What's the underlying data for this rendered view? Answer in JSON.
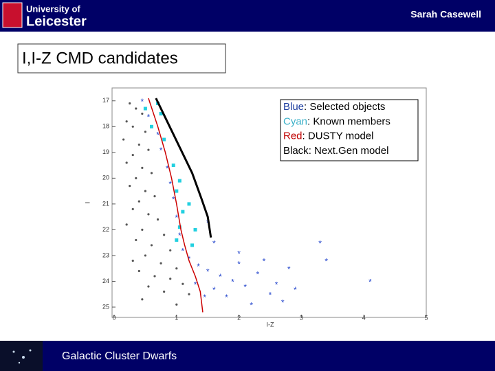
{
  "header": {
    "logo_line1": "University of",
    "logo_line2": "Leicester",
    "author": "Sarah Casewell"
  },
  "slide_title": "I,I-Z CMD candidates",
  "footer": {
    "text": "Galactic Cluster Dwarfs"
  },
  "chart_data": {
    "type": "scatter",
    "xlabel": "I-Z",
    "ylabel": "I",
    "xlim": [
      0,
      5
    ],
    "ylim": [
      16.5,
      25.4
    ],
    "y_inverted": true,
    "xticks": [
      0,
      1,
      2,
      3,
      4,
      5
    ],
    "yticks": [
      17,
      18,
      19,
      20,
      21,
      22,
      23,
      24,
      25
    ],
    "legend": [
      {
        "key": "Blue",
        "color": "#1f3fa0",
        "text": ": Selected objects"
      },
      {
        "key": "Cyan",
        "color": "#3ab0c8",
        "text": ": Known members"
      },
      {
        "key": "Red",
        "color": "#c00000",
        "text": ": DUSTY model"
      },
      {
        "key": "Black",
        "color": "#000000",
        "text": ": Next.Gen model"
      }
    ],
    "legend_position": "upper right",
    "series": [
      {
        "color": "#555555",
        "kind": "points",
        "x": [
          0.25,
          0.35,
          0.45,
          0.2,
          0.3,
          0.5,
          0.15,
          0.4,
          0.55,
          0.3,
          0.2,
          0.45,
          0.6,
          0.35,
          0.25,
          0.5,
          0.65,
          0.4,
          0.3,
          0.55,
          0.7,
          0.2,
          0.45,
          0.8,
          0.35,
          0.6,
          0.9,
          0.5,
          0.3,
          0.75,
          1.0,
          0.4,
          0.65,
          0.9,
          1.1,
          0.55,
          0.8,
          1.2,
          0.45,
          1.0
        ],
        "values": [
          17.1,
          17.3,
          17.5,
          17.8,
          18.0,
          18.2,
          18.5,
          18.7,
          18.9,
          19.1,
          19.4,
          19.6,
          19.8,
          20.0,
          20.3,
          20.5,
          20.7,
          20.9,
          21.2,
          21.4,
          21.6,
          21.8,
          22.0,
          22.2,
          22.4,
          22.6,
          22.8,
          23.0,
          23.2,
          23.3,
          23.5,
          23.6,
          23.8,
          23.9,
          24.1,
          24.2,
          24.4,
          24.5,
          24.7,
          24.9
        ]
      },
      {
        "color": "#2244cc",
        "kind": "stars",
        "x": [
          0.45,
          0.55,
          0.7,
          0.75,
          0.85,
          0.9,
          0.95,
          1.0,
          1.05,
          1.1,
          1.2,
          1.35,
          1.5,
          1.7,
          1.9,
          2.1,
          1.6,
          2.3,
          2.0,
          1.8,
          2.5,
          2.7,
          2.2,
          2.4,
          2.0,
          1.6,
          1.5,
          3.3,
          3.4,
          4.1,
          2.6,
          2.9,
          1.3,
          1.45,
          2.8
        ],
        "values": [
          17.0,
          17.6,
          18.3,
          18.9,
          19.6,
          20.2,
          20.8,
          21.5,
          22.2,
          22.8,
          23.1,
          23.4,
          23.6,
          23.8,
          24.0,
          24.2,
          24.3,
          23.7,
          23.3,
          24.6,
          24.5,
          24.8,
          24.9,
          23.2,
          22.9,
          22.5,
          21.7,
          22.5,
          23.2,
          24.0,
          24.1,
          24.3,
          24.1,
          24.6,
          23.5
        ]
      },
      {
        "color": "#22d0e0",
        "kind": "squares",
        "x": [
          0.5,
          0.75,
          0.6,
          0.8,
          0.95,
          1.05,
          1.0,
          1.1,
          1.05,
          1.3,
          1.0,
          1.25,
          0.7,
          1.2
        ],
        "values": [
          17.3,
          17.5,
          18.0,
          18.5,
          19.5,
          20.1,
          20.5,
          21.3,
          21.9,
          22.0,
          22.4,
          22.6,
          17.1,
          21.0
        ]
      },
      {
        "color": "#cc0000",
        "kind": "line",
        "width": 1.5,
        "x": [
          0.55,
          0.7,
          0.82,
          0.92,
          1.0,
          1.07,
          1.13,
          1.2,
          1.3,
          1.38,
          1.42
        ],
        "values": [
          16.9,
          18,
          19,
          20,
          21,
          22,
          22.6,
          23.2,
          23.8,
          24.4,
          25.2
        ]
      },
      {
        "color": "#000000",
        "kind": "line",
        "width": 3,
        "x": [
          0.67,
          0.85,
          1.05,
          1.25,
          1.4,
          1.5,
          1.55
        ],
        "values": [
          16.9,
          17.8,
          18.8,
          19.8,
          20.8,
          21.5,
          22.3
        ]
      }
    ]
  }
}
